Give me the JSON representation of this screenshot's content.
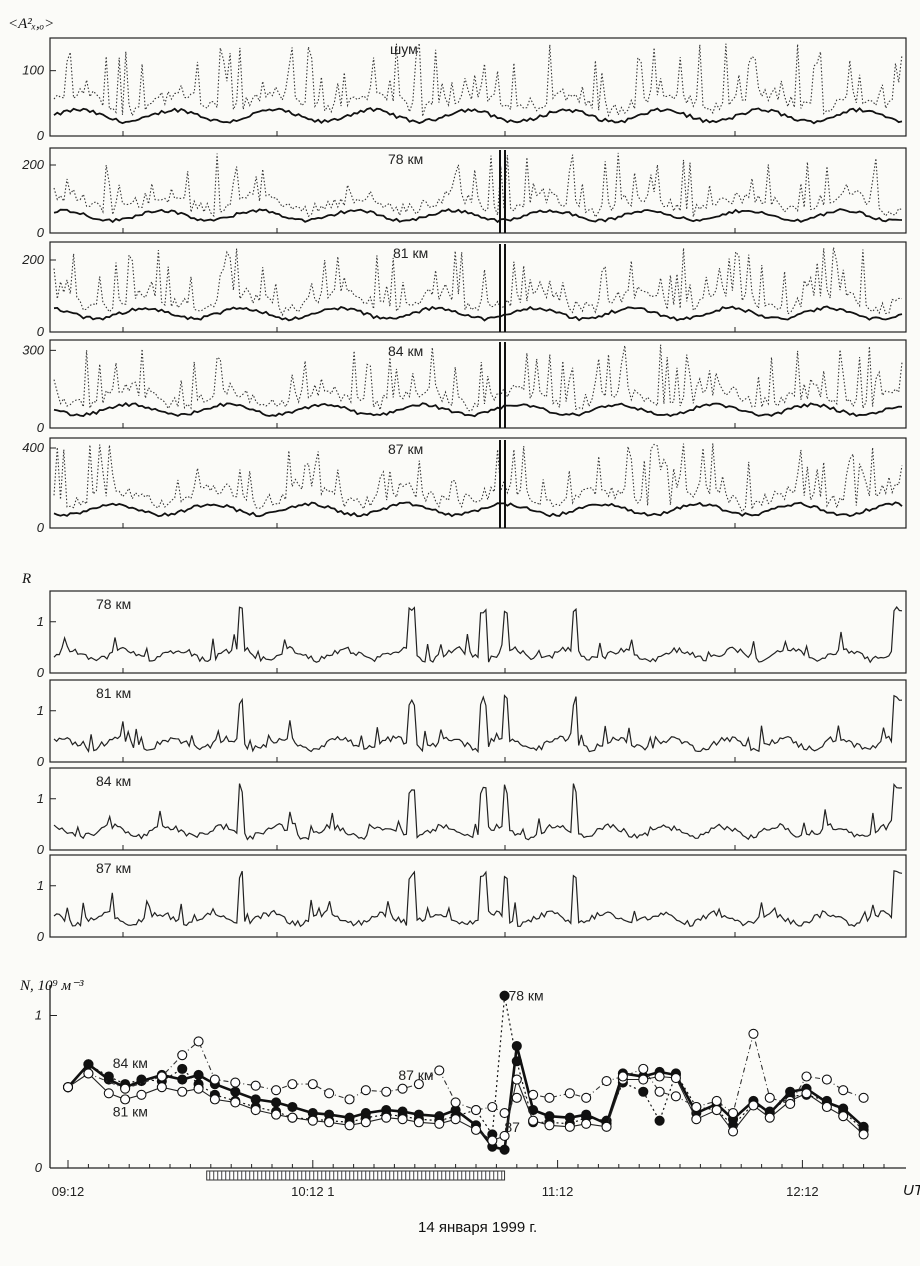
{
  "chart_data": [
    {
      "type": "line",
      "ylabel": "<A²ₓ,ₒ>",
      "panels": [
        {
          "title": "шум",
          "yticks": [
            0,
            100
          ],
          "ylim": [
            0,
            150
          ]
        },
        {
          "title": "78 км",
          "yticks": [
            0,
            200
          ],
          "ylim": [
            0,
            250
          ]
        },
        {
          "title": "81 км",
          "yticks": [
            0,
            200
          ],
          "ylim": [
            0,
            250
          ]
        },
        {
          "title": "84 км",
          "yticks": [
            0,
            300
          ],
          "ylim": [
            0,
            340
          ]
        },
        {
          "title": "87 км",
          "yticks": [
            0,
            400
          ],
          "ylim": [
            0,
            450
          ]
        }
      ]
    },
    {
      "type": "line",
      "ylabel": "R",
      "panels": [
        {
          "title": "78 км",
          "yticks": [
            0,
            1
          ],
          "ylim": [
            0,
            1.6
          ]
        },
        {
          "title": "81 км",
          "yticks": [
            0,
            1
          ],
          "ylim": [
            0,
            1.6
          ]
        },
        {
          "title": "84 км",
          "yticks": [
            0,
            1
          ],
          "ylim": [
            0,
            1.6
          ]
        },
        {
          "title": "87 км",
          "yticks": [
            0,
            1
          ],
          "ylim": [
            0,
            1.6
          ]
        }
      ]
    },
    {
      "type": "line",
      "ylabel": "N, 10⁹ м⁻³",
      "yticks": [
        0,
        1
      ],
      "ylim": [
        0,
        1.2
      ],
      "xlim": [
        0,
        200
      ],
      "xtick_values": [
        0,
        60,
        120,
        180
      ],
      "xtick_labels": [
        "09:12",
        "10:12 1",
        "11:12",
        "12:12"
      ],
      "xaxis_label": "UT",
      "date_label": "14 января 1999 г.",
      "hatched_interval": [
        34,
        107
      ],
      "annotations": [
        {
          "text": "78 км",
          "x": 106,
          "y": 1.13
        },
        {
          "text": "84 км",
          "x": 9,
          "y": 0.69
        },
        {
          "text": "81 км",
          "x": 9,
          "y": 0.37
        },
        {
          "text": "87 км",
          "x": 79,
          "y": 0.61
        },
        {
          "text": "87",
          "x": 105,
          "y": 0.27
        }
      ],
      "series": [
        {
          "marker": "filled",
          "values": [
            [
              0,
              0.53
            ],
            [
              5,
              0.68
            ],
            [
              10,
              0.58
            ],
            [
              14,
              0.53
            ],
            [
              18,
              0.57
            ],
            [
              23,
              0.61
            ],
            [
              28,
              0.58
            ],
            [
              32,
              0.61
            ],
            [
              36,
              0.55
            ],
            [
              41,
              0.5
            ],
            [
              46,
              0.45
            ],
            [
              51,
              0.43
            ],
            [
              55,
              0.4
            ],
            [
              60,
              0.36
            ],
            [
              64,
              0.35
            ],
            [
              69,
              0.33
            ],
            [
              73,
              0.36
            ],
            [
              78,
              0.38
            ],
            [
              82,
              0.37
            ],
            [
              86,
              0.35
            ],
            [
              91,
              0.34
            ],
            [
              95,
              0.38
            ],
            [
              100,
              0.28
            ],
            [
              104,
              0.14
            ],
            [
              107,
              0.12
            ],
            [
              110,
              0.8
            ],
            [
              114,
              0.38
            ],
            [
              118,
              0.34
            ],
            [
              123,
              0.33
            ],
            [
              127,
              0.35
            ],
            [
              132,
              0.29
            ],
            [
              136,
              0.62
            ],
            [
              141,
              0.6
            ],
            [
              145,
              0.63
            ],
            [
              149,
              0.61
            ],
            [
              154,
              0.36
            ],
            [
              159,
              0.42
            ],
            [
              163,
              0.32
            ],
            [
              168,
              0.44
            ],
            [
              172,
              0.36
            ],
            [
              177,
              0.5
            ],
            [
              181,
              0.52
            ],
            [
              186,
              0.43
            ],
            [
              190,
              0.39
            ],
            [
              195,
              0.27
            ]
          ]
        },
        {
          "marker": "filled",
          "values": [
            [
              0,
              0.53
            ],
            [
              5,
              0.68
            ],
            [
              10,
              0.6
            ],
            [
              14,
              0.55
            ],
            [
              18,
              0.58
            ],
            [
              23,
              0.57
            ],
            [
              28,
              0.65
            ],
            [
              32,
              0.55
            ],
            [
              36,
              0.48
            ],
            [
              41,
              0.44
            ],
            [
              46,
              0.4
            ],
            [
              51,
              0.37
            ],
            [
              55,
              0.33
            ],
            [
              60,
              0.32
            ],
            [
              64,
              0.31
            ],
            [
              69,
              0.3
            ],
            [
              73,
              0.33
            ],
            [
              78,
              0.35
            ],
            [
              82,
              0.34
            ],
            [
              86,
              0.32
            ],
            [
              91,
              0.31
            ],
            [
              95,
              0.34
            ],
            [
              100,
              0.38
            ],
            [
              104,
              0.22
            ],
            [
              107,
              1.13
            ],
            [
              110,
              0.7
            ],
            [
              114,
              0.3
            ],
            [
              118,
              0.3
            ],
            [
              123,
              0.29
            ],
            [
              127,
              0.33
            ],
            [
              132,
              0.31
            ],
            [
              136,
              0.56
            ],
            [
              141,
              0.5
            ],
            [
              145,
              0.31
            ],
            [
              149,
              0.62
            ],
            [
              154,
              0.4
            ],
            [
              159,
              0.38
            ],
            [
              163,
              0.28
            ],
            [
              168,
              0.42
            ],
            [
              172,
              0.37
            ],
            [
              177,
              0.47
            ],
            [
              181,
              0.48
            ],
            [
              186,
              0.44
            ],
            [
              190,
              0.37
            ],
            [
              195,
              0.25
            ]
          ]
        },
        {
          "marker": "open",
          "values": [
            [
              0,
              0.53
            ],
            [
              5,
              0.62
            ],
            [
              10,
              0.49
            ],
            [
              14,
              0.45
            ],
            [
              18,
              0.48
            ],
            [
              23,
              0.53
            ],
            [
              28,
              0.5
            ],
            [
              32,
              0.52
            ],
            [
              36,
              0.45
            ],
            [
              41,
              0.43
            ],
            [
              46,
              0.38
            ],
            [
              51,
              0.35
            ],
            [
              55,
              0.33
            ],
            [
              60,
              0.31
            ],
            [
              64,
              0.3
            ],
            [
              69,
              0.28
            ],
            [
              73,
              0.3
            ],
            [
              78,
              0.33
            ],
            [
              82,
              0.32
            ],
            [
              86,
              0.3
            ],
            [
              91,
              0.29
            ],
            [
              95,
              0.32
            ],
            [
              100,
              0.25
            ],
            [
              104,
              0.18
            ],
            [
              107,
              0.21
            ],
            [
              110,
              0.58
            ],
            [
              114,
              0.31
            ],
            [
              118,
              0.28
            ],
            [
              123,
              0.27
            ],
            [
              127,
              0.29
            ],
            [
              132,
              0.27
            ],
            [
              136,
              0.58
            ],
            [
              141,
              0.58
            ],
            [
              145,
              0.6
            ],
            [
              149,
              0.59
            ],
            [
              154,
              0.32
            ],
            [
              159,
              0.38
            ],
            [
              163,
              0.24
            ],
            [
              168,
              0.41
            ],
            [
              172,
              0.33
            ],
            [
              177,
              0.44
            ],
            [
              181,
              0.49
            ],
            [
              186,
              0.4
            ],
            [
              190,
              0.34
            ],
            [
              195,
              0.22
            ]
          ]
        },
        {
          "marker": "open",
          "values": [
            [
              0,
              0.53
            ],
            [
              5,
              0.62
            ],
            [
              14,
              0.52
            ],
            [
              23,
              0.6
            ],
            [
              28,
              0.74
            ],
            [
              32,
              0.83
            ],
            [
              36,
              0.58
            ],
            [
              41,
              0.56
            ],
            [
              46,
              0.54
            ],
            [
              51,
              0.51
            ],
            [
              55,
              0.55
            ],
            [
              60,
              0.55
            ],
            [
              64,
              0.49
            ],
            [
              69,
              0.45
            ],
            [
              73,
              0.51
            ],
            [
              78,
              0.5
            ],
            [
              82,
              0.52
            ],
            [
              86,
              0.55
            ],
            [
              91,
              0.64
            ],
            [
              95,
              0.43
            ],
            [
              100,
              0.38
            ],
            [
              104,
              0.4
            ],
            [
              107,
              0.36
            ],
            [
              110,
              0.46
            ],
            [
              114,
              0.48
            ],
            [
              118,
              0.46
            ],
            [
              123,
              0.49
            ],
            [
              127,
              0.46
            ],
            [
              132,
              0.57
            ],
            [
              136,
              0.6
            ],
            [
              141,
              0.65
            ],
            [
              145,
              0.5
            ],
            [
              149,
              0.47
            ],
            [
              154,
              0.4
            ],
            [
              159,
              0.44
            ],
            [
              163,
              0.36
            ],
            [
              168,
              0.88
            ],
            [
              172,
              0.46
            ],
            [
              177,
              0.42
            ],
            [
              181,
              0.6
            ],
            [
              186,
              0.58
            ],
            [
              190,
              0.51
            ],
            [
              195,
              0.46
            ]
          ]
        }
      ]
    }
  ]
}
